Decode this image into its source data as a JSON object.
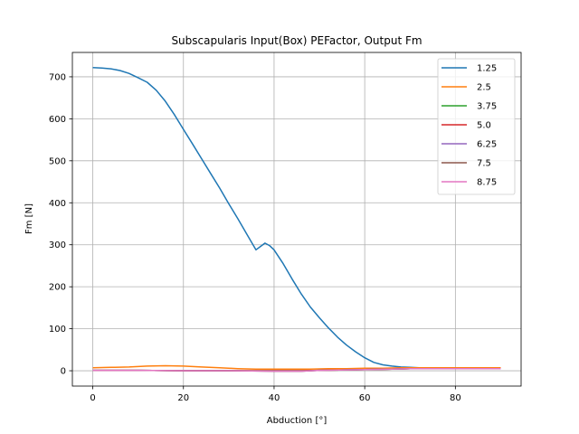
{
  "chart_data": {
    "type": "line",
    "title": "Subscapularis Input(Box) PEFactor, Output Fm",
    "xlabel": "Abduction [°]",
    "ylabel": "Fm [N]",
    "xlim": [
      -4.5,
      94.5
    ],
    "ylim": [
      -36.5,
      758
    ],
    "xticks": [
      0,
      20,
      40,
      60,
      80
    ],
    "yticks": [
      0,
      100,
      200,
      300,
      400,
      500,
      600,
      700
    ],
    "grid": true,
    "legend_position": "top-right",
    "series": [
      {
        "name": "1.25",
        "color": "#1f77b4",
        "x": [
          0,
          2,
          4,
          6,
          8,
          10,
          12,
          14,
          16,
          18,
          20,
          22,
          24,
          26,
          28,
          30,
          32,
          34,
          36,
          37,
          38,
          39,
          40,
          42,
          44,
          46,
          48,
          50,
          52,
          54,
          56,
          58,
          60,
          62,
          64,
          66,
          68,
          70,
          72,
          74,
          76,
          78,
          80,
          82,
          84,
          86,
          88,
          90
        ],
        "y": [
          722,
          721,
          719,
          715,
          708,
          698,
          687,
          668,
          642,
          610,
          575,
          540,
          505,
          470,
          435,
          398,
          362,
          325,
          288,
          296,
          304,
          298,
          288,
          255,
          218,
          183,
          152,
          126,
          102,
          80,
          61,
          45,
          31,
          20,
          14,
          11,
          9,
          8,
          7,
          7,
          6,
          6,
          6,
          6,
          6,
          6,
          6,
          6
        ]
      },
      {
        "name": "2.5",
        "color": "#ff7f0e",
        "x": [
          0,
          4,
          8,
          12,
          16,
          20,
          24,
          28,
          32,
          36,
          40,
          44,
          48,
          52,
          56,
          60,
          64,
          68,
          72,
          76,
          80,
          84,
          88,
          90
        ],
        "y": [
          7,
          8,
          9,
          11,
          12,
          11,
          9,
          7,
          5,
          4,
          4,
          4,
          4,
          5,
          5,
          6,
          6,
          7,
          7,
          7,
          7,
          7,
          7,
          7
        ]
      },
      {
        "name": "3.75",
        "color": "#2ca02c",
        "x": [
          0,
          10,
          20,
          30,
          40,
          46,
          50,
          56,
          60,
          66,
          70,
          80,
          90
        ],
        "y": [
          1,
          1,
          0,
          0,
          0,
          0,
          1,
          2,
          3,
          4,
          5,
          5,
          5
        ]
      },
      {
        "name": "5.0",
        "color": "#d62728",
        "x": [
          0,
          10,
          20,
          30,
          40,
          46,
          50,
          56,
          60,
          66,
          70,
          80,
          90
        ],
        "y": [
          1,
          1,
          0,
          0,
          0,
          0,
          1,
          2,
          3,
          4,
          5,
          5,
          5
        ]
      },
      {
        "name": "6.25",
        "color": "#9467bd",
        "x": [
          0,
          10,
          20,
          30,
          40,
          46,
          50,
          56,
          60,
          66,
          70,
          80,
          90
        ],
        "y": [
          1,
          1,
          0,
          0,
          -1,
          -1,
          1,
          2,
          3,
          4,
          5,
          5,
          5
        ]
      },
      {
        "name": "7.5",
        "color": "#8c564b",
        "x": [
          0,
          10,
          20,
          30,
          40,
          46,
          50,
          56,
          60,
          66,
          70,
          80,
          90
        ],
        "y": [
          1,
          1,
          0,
          0,
          -1,
          -1,
          1,
          2,
          3,
          4,
          5,
          5,
          5
        ]
      },
      {
        "name": "8.75",
        "color": "#e377c2",
        "x": [
          0,
          10,
          20,
          30,
          40,
          46,
          50,
          56,
          60,
          66,
          70,
          80,
          90
        ],
        "y": [
          1,
          1,
          0,
          0,
          -1,
          -1,
          1,
          2,
          3,
          4,
          5,
          5,
          5
        ]
      }
    ]
  }
}
